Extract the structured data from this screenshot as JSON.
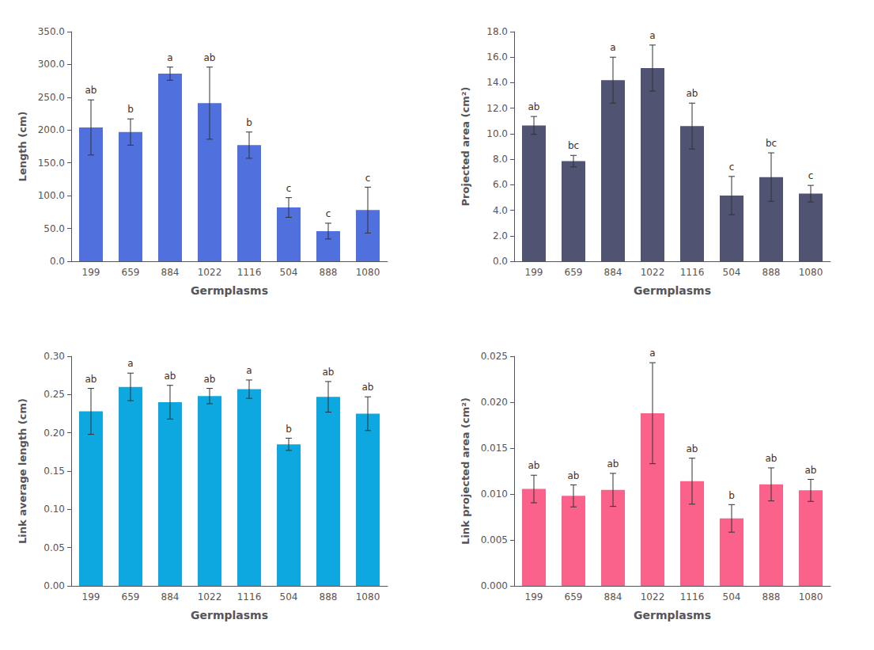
{
  "chart_data": [
    {
      "type": "bar",
      "categories": [
        "199",
        "659",
        "884",
        "1022",
        "1116",
        "504",
        "888",
        "1080"
      ],
      "values": [
        204,
        197,
        286,
        241,
        177,
        82,
        46,
        78
      ],
      "errors": [
        42,
        20,
        10,
        55,
        20,
        15,
        12,
        35
      ],
      "letters": [
        "ab",
        "b",
        "a",
        "ab",
        "b",
        "c",
        "c",
        "c"
      ],
      "xlabel": "Germplasms",
      "ylabel": "Length (cm)",
      "ylim": [
        0,
        350
      ],
      "yticks": [
        {
          "value": 0,
          "label": "0.0"
        },
        {
          "value": 50,
          "label": "50.0"
        },
        {
          "value": 100,
          "label": "100.0"
        },
        {
          "value": 150,
          "label": "150.0"
        },
        {
          "value": 200,
          "label": "200.0"
        },
        {
          "value": 250,
          "label": "250.0"
        },
        {
          "value": 300,
          "label": "300.0"
        },
        {
          "value": 350,
          "label": "350.0"
        }
      ],
      "grid": false
    },
    {
      "type": "bar",
      "categories": [
        "199",
        "659",
        "884",
        "1022",
        "1116",
        "504",
        "888",
        "1080"
      ],
      "values": [
        10.65,
        7.85,
        14.2,
        15.15,
        10.6,
        5.15,
        6.6,
        5.3
      ],
      "errors": [
        0.7,
        0.45,
        1.8,
        1.8,
        1.8,
        1.5,
        1.9,
        0.65
      ],
      "letters": [
        "ab",
        "bc",
        "a",
        "a",
        "ab",
        "c",
        "bc",
        "c"
      ],
      "xlabel": "Germplasms",
      "ylabel": "Projected area (cm²)",
      "ylim": [
        0,
        18.0
      ],
      "yticks": [
        {
          "value": 0,
          "label": "0.0"
        },
        {
          "value": 2,
          "label": "2.0"
        },
        {
          "value": 4,
          "label": "4.0"
        },
        {
          "value": 6,
          "label": "6.0"
        },
        {
          "value": 8,
          "label": "8.0"
        },
        {
          "value": 10,
          "label": "10.0"
        },
        {
          "value": 12,
          "label": "12.0"
        },
        {
          "value": 14,
          "label": "14.0"
        },
        {
          "value": 16,
          "label": "16.0"
        },
        {
          "value": 18,
          "label": "18.0"
        }
      ],
      "grid": false
    },
    {
      "type": "bar",
      "categories": [
        "199",
        "659",
        "884",
        "1022",
        "1116",
        "504",
        "888",
        "1080"
      ],
      "values": [
        0.228,
        0.26,
        0.24,
        0.248,
        0.257,
        0.185,
        0.247,
        0.225
      ],
      "errors": [
        0.03,
        0.018,
        0.022,
        0.01,
        0.012,
        0.008,
        0.02,
        0.022
      ],
      "letters": [
        "ab",
        "a",
        "ab",
        "ab",
        "a",
        "b",
        "ab",
        "ab"
      ],
      "xlabel": "Germplasms",
      "ylabel": "Link average length (cm)",
      "ylim": [
        0,
        0.3
      ],
      "yticks": [
        {
          "value": 0,
          "label": "0.00"
        },
        0.05,
        {
          "value": 0.1,
          "label": "0.10"
        },
        0.15,
        {
          "value": 0.2,
          "label": "0.20"
        },
        0.25,
        {
          "value": 0.3,
          "label": "0.30"
        }
      ],
      "grid": false
    },
    {
      "type": "bar",
      "categories": [
        "199",
        "659",
        "884",
        "1022",
        "1116",
        "504",
        "888",
        "1080"
      ],
      "values": [
        0.01055,
        0.0098,
        0.01045,
        0.0188,
        0.0114,
        0.00735,
        0.01105,
        0.0104
      ],
      "errors": [
        0.0015,
        0.0012,
        0.0018,
        0.0055,
        0.0025,
        0.0015,
        0.0018,
        0.0012
      ],
      "letters": [
        "ab",
        "ab",
        "ab",
        "a",
        "ab",
        "b",
        "ab",
        "ab"
      ],
      "xlabel": "Germplasms",
      "ylabel": "Link projected area (cm²)",
      "ylim": [
        0,
        0.025
      ],
      "yticks": [
        {
          "value": 0,
          "label": "0.000"
        },
        0.005,
        {
          "value": 0.01,
          "label": "0.010"
        },
        0.015,
        {
          "value": 0.02,
          "label": "0.020"
        },
        0.025
      ],
      "grid": false
    }
  ]
}
